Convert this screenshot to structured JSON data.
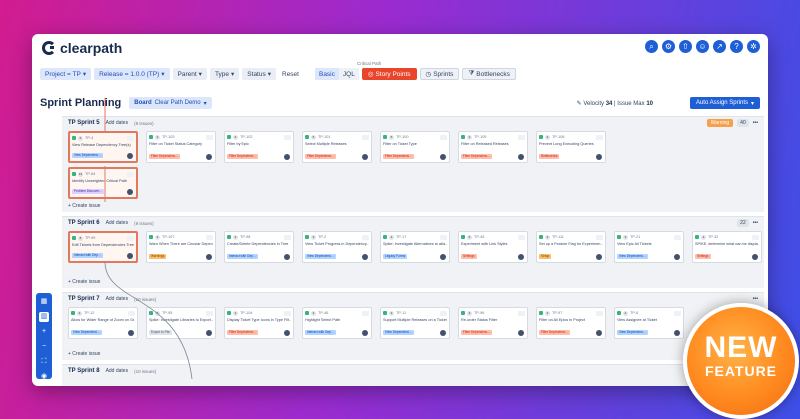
{
  "app": {
    "name": "clearpath"
  },
  "top_icons": [
    "search-icon",
    "settings-icon",
    "upload-icon",
    "user-icon",
    "share-icon",
    "help-icon",
    "gear-icon"
  ],
  "filters": {
    "project": "Project = TP",
    "release": "Release = 1.0.0 (TP)",
    "parent": "Parent",
    "type": "Type",
    "status": "Status",
    "reset": "Reset",
    "basic": "Basic",
    "jql": "JQL",
    "critical_path_label": "Critical Path",
    "story_points": "Story Points",
    "sprints": "Sprints",
    "bottlenecks": "Bottlenecks"
  },
  "header": {
    "title": "Sprint Planning",
    "board_label": "Board",
    "board_value": "Clear Path Demo",
    "velocity_label": "Velocity",
    "velocity_value": "34",
    "issue_max_label": "Issue Max",
    "issue_max_value": "10",
    "auto_assign": "Auto Assign Sprints"
  },
  "sprints": [
    {
      "name": "TP Sprint 5",
      "add_dates": "Add dates",
      "count": "(8 issues)",
      "warning": "Warning",
      "capacity": "40",
      "create": "+ Create issue",
      "cards": [
        {
          "id": "TP-4",
          "pts": "5",
          "title": "View Release Dependency Tree(s)",
          "tag": "View Dependenc...",
          "tagc": "blue",
          "sel": true
        },
        {
          "id": "TP-103",
          "pts": "3",
          "title": "Filter on Ticket Status Category",
          "tag": "Filter Dependenc...",
          "tagc": "red",
          "sel": false
        },
        {
          "id": "TP-102",
          "pts": "3",
          "title": "Filter by Epic",
          "tag": "Filter Dependenc...",
          "tagc": "red",
          "sel": false
        },
        {
          "id": "TP-101",
          "pts": "5",
          "title": "Select Multiple Releases",
          "tag": "Filter Dependenc...",
          "tagc": "red",
          "sel": false
        },
        {
          "id": "TP-100",
          "pts": "5",
          "title": "Filter on Ticket Type",
          "tag": "Filter Dependenc...",
          "tagc": "red",
          "sel": false
        },
        {
          "id": "TP-105",
          "pts": "3",
          "title": "Filter on Released Releases",
          "tag": "Filter Dependenc...",
          "tagc": "red",
          "sel": false
        },
        {
          "id": "TP-106",
          "pts": "3",
          "title": "Prevent Long Executing Queries",
          "tag": "Bottlenecks",
          "tagc": "red",
          "sel": false
        }
      ],
      "extra_card": {
        "id": "TP-64",
        "pts": "13",
        "title": "Identify Unweighted Critical Path",
        "tag": "Problem Discover...",
        "tagc": "purple"
      }
    },
    {
      "name": "TP Sprint 6",
      "add_dates": "Add dates",
      "count": "(9 issues)",
      "warning": "",
      "capacity": "22",
      "create": "+ Create issue",
      "cards": [
        {
          "id": "TP-99",
          "pts": "8",
          "title": "Edit Tickets from Dependencies Tree",
          "tag": "Interact with Dep...",
          "tagc": "blue",
          "sel": true
        },
        {
          "id": "TP-107",
          "pts": "3",
          "title": "Warn When There are Circular Depen...",
          "tag": "Warnings",
          "tagc": "orange",
          "sel": false
        },
        {
          "id": "TP-98",
          "pts": "3",
          "title": "Create/Delete Dependencies in Tree",
          "tag": "Interact with Dep...",
          "tagc": "blue",
          "sel": false
        },
        {
          "id": "TP-2",
          "pts": "3",
          "title": "View Ticket Progress in Dependency...",
          "tag": "View Dependenc...",
          "tagc": "blue",
          "sel": false
        },
        {
          "id": "TP-17",
          "pts": "3",
          "title": "Spike: Investigate Alternatives to atla...",
          "tag": "Legacy Forms",
          "tagc": "blue",
          "sel": false
        },
        {
          "id": "TP-45",
          "pts": "5",
          "title": "Experiment with Link Styles",
          "tag": "Settings",
          "tagc": "red",
          "sel": false
        },
        {
          "id": "TP-111",
          "pts": "3",
          "title": "Set up a Feature Flag for Experimen...",
          "tag": "Setup",
          "tagc": "orange",
          "sel": false
        },
        {
          "id": "TP-21",
          "pts": "3",
          "title": "View Epic All Tickets",
          "tag": "View Dependenc...",
          "tagc": "blue",
          "sel": false
        },
        {
          "id": "TP-32",
          "pts": "3",
          "title": "SPIKE: determine what can be displa...",
          "tag": "Settings",
          "tagc": "red",
          "sel": false
        }
      ]
    },
    {
      "name": "TP Sprint 7",
      "add_dates": "Add dates",
      "count": "(10 issues)",
      "warning": "",
      "capacity": "",
      "create": "+ Create issue",
      "cards": [
        {
          "id": "TP-12",
          "pts": "3",
          "title": "Allow for Wider Range of Zoom on Gr...",
          "tag": "View Dependenc...",
          "tagc": "blue",
          "sel": false
        },
        {
          "id": "TP-95",
          "pts": "5",
          "title": "Spike: Investigate Libraries to Export...",
          "tag": "Export to File",
          "tagc": "gray",
          "sel": false
        },
        {
          "id": "TP-104",
          "pts": "3",
          "title": "Display Ticket Type Icons in Type Filt...",
          "tag": "Filter Dependenc...",
          "tagc": "red",
          "sel": false
        },
        {
          "id": "TP-46",
          "pts": "3",
          "title": "Highlight Select Path",
          "tag": "Interact with Dep...",
          "tagc": "blue",
          "sel": false
        },
        {
          "id": "TP-11",
          "pts": "3",
          "title": "Support Multiple Releases on a Ticket",
          "tag": "View Dependenc...",
          "tagc": "blue",
          "sel": false
        },
        {
          "id": "TP-96",
          "pts": "3",
          "title": "Re-order Status Filter",
          "tag": "Filter Dependenc...",
          "tagc": "red",
          "sel": false
        },
        {
          "id": "TP-97",
          "pts": "3",
          "title": "Filter on All Epics in Project",
          "tag": "Filter Dependenc...",
          "tagc": "red",
          "sel": false
        },
        {
          "id": "TP-6",
          "pts": "2",
          "title": "View Assignee at Ticket",
          "tag": "View Dependenc...",
          "tagc": "blue",
          "sel": false
        }
      ]
    },
    {
      "name": "TP Sprint 8",
      "add_dates": "Add dates",
      "count": "(10 issues)",
      "warning": "",
      "capacity": "",
      "create": "",
      "cards": []
    }
  ],
  "badge": {
    "line1": "NEW",
    "line2": "FEATURE"
  }
}
